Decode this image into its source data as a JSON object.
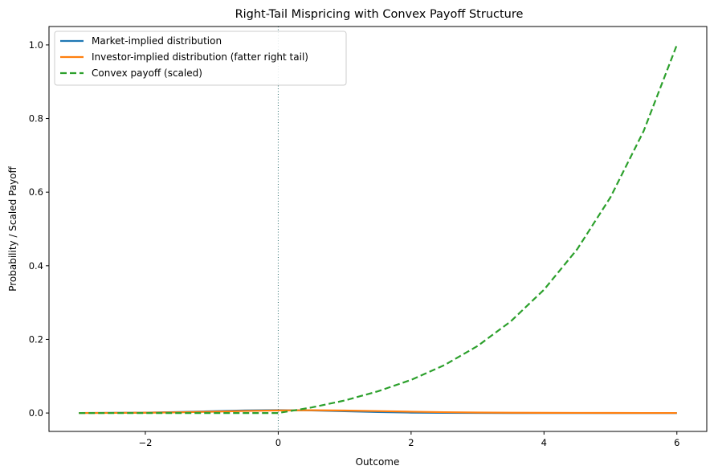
{
  "chart_data": {
    "type": "line",
    "title": "Right-Tail Mispricing with Convex Payoff Structure",
    "xlabel": "Outcome",
    "ylabel": "Probability / Scaled Payoff",
    "xlim": [
      -3.45,
      6.45
    ],
    "ylim": [
      -0.05,
      1.05
    ],
    "xticks": [
      -2,
      0,
      2,
      4,
      6
    ],
    "xtick_labels": [
      "−2",
      "0",
      "2",
      "4",
      "6"
    ],
    "yticks": [
      0.0,
      0.2,
      0.4,
      0.6,
      0.8,
      1.0
    ],
    "ytick_labels": [
      "0.0",
      "0.2",
      "0.4",
      "0.6",
      "0.8",
      "1.0"
    ],
    "grid": false,
    "legend_position": "upper left",
    "vline": {
      "x": 0,
      "style": "dotted",
      "color": "#2f6f6f"
    },
    "x": [
      -3,
      -2.5,
      -2,
      -1.5,
      -1,
      -0.5,
      0,
      0.5,
      1,
      1.5,
      2,
      2.5,
      3,
      3.5,
      4,
      4.5,
      5,
      5.5,
      6
    ],
    "series": [
      {
        "name": "Market-implied distribution",
        "color": "#1f77b4",
        "style": "solid",
        "values": [
          0.0001,
          0.0004,
          0.0011,
          0.0026,
          0.0048,
          0.007,
          0.008,
          0.007,
          0.0048,
          0.0026,
          0.0011,
          0.0004,
          0.0001,
          0.0,
          0.0,
          0.0,
          0.0,
          0.0,
          0.0
        ]
      },
      {
        "name": "Investor-implied distribution (fatter right tail)",
        "color": "#ff7f0e",
        "style": "solid",
        "values": [
          0.0001,
          0.0003,
          0.0008,
          0.0018,
          0.0035,
          0.0055,
          0.007,
          0.0075,
          0.0068,
          0.0052,
          0.0036,
          0.0022,
          0.0013,
          0.0008,
          0.0005,
          0.0003,
          0.0002,
          0.0001,
          0.0001
        ]
      },
      {
        "name": "Convex payoff (scaled)",
        "color": "#2ca02c",
        "style": "dashed",
        "values": [
          0.0,
          0.0,
          0.0,
          0.0,
          0.0,
          0.0,
          0.0,
          0.015,
          0.034,
          0.059,
          0.09,
          0.13,
          0.182,
          0.249,
          0.335,
          0.445,
          0.586,
          0.766,
          1.0
        ]
      }
    ]
  }
}
